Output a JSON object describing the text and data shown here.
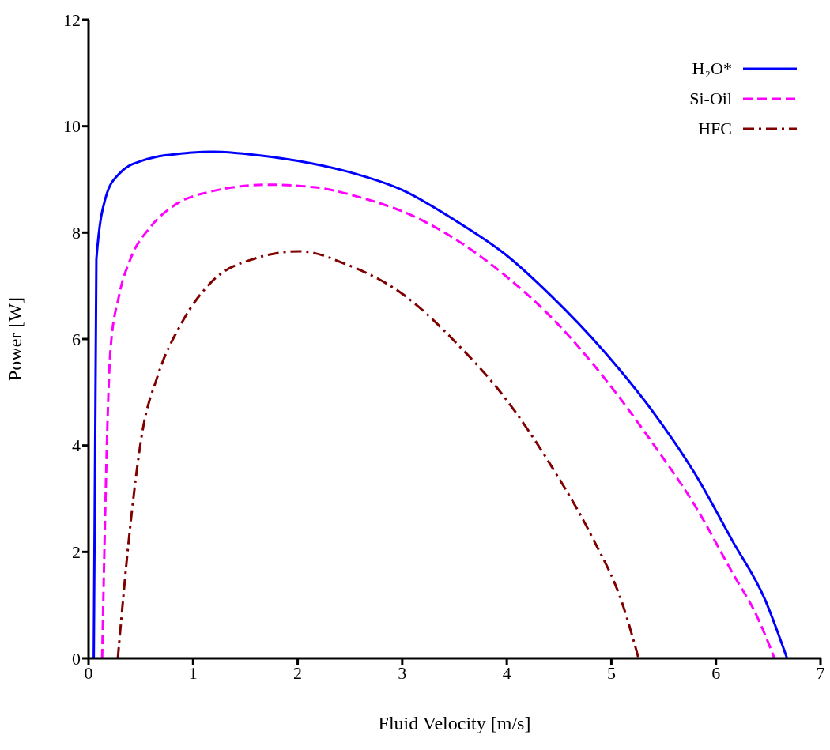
{
  "chart_data": {
    "type": "line",
    "xlabel": "Fluid Velocity [m/s]",
    "ylabel": "Power [W]",
    "xlim": [
      0,
      7
    ],
    "xticks": [
      0,
      1,
      2,
      3,
      4,
      5,
      6,
      7
    ],
    "ylim": [
      0,
      12
    ],
    "yticks": [
      0,
      2,
      4,
      6,
      8,
      10,
      12
    ],
    "grid": false,
    "legend": "top right",
    "marker": "none",
    "series": [
      {
        "name": "H₂O*",
        "color": "#0000ff",
        "line_style": "solid",
        "x": [
          0.05,
          0.075,
          0.17,
          0.29,
          0.51,
          0.96,
          1.19,
          1.64,
          2.0,
          2.47,
          3.0,
          3.53,
          3.98,
          4.43,
          4.96,
          5.41,
          5.79,
          6.16,
          6.47,
          6.68
        ],
        "values": [
          0,
          7.5,
          8.7,
          9.1,
          9.35,
          9.5,
          9.52,
          9.45,
          9.35,
          9.15,
          8.8,
          8.2,
          7.6,
          6.8,
          5.7,
          4.6,
          3.5,
          2.2,
          1.1,
          0
        ]
      },
      {
        "name": "Si-Oil",
        "color": "#ff00ff",
        "line_style": "dashed",
        "x": [
          0.13,
          0.21,
          0.29,
          0.4,
          0.59,
          0.81,
          1.12,
          1.72,
          2.17,
          2.62,
          3.0,
          3.53,
          3.98,
          4.43,
          4.96,
          5.41,
          5.79,
          6.16,
          6.39,
          6.56
        ],
        "values": [
          0,
          5.8,
          6.8,
          7.5,
          8.1,
          8.5,
          8.75,
          8.9,
          8.85,
          8.65,
          8.4,
          7.85,
          7.2,
          6.4,
          5.2,
          4.0,
          2.9,
          1.6,
          0.8,
          0
        ]
      },
      {
        "name": "HFC",
        "color": "#800000",
        "line_style": "dashdot",
        "x": [
          0.28,
          0.4,
          0.51,
          0.66,
          0.89,
          1.19,
          1.57,
          2.02,
          2.47,
          3.0,
          3.53,
          3.98,
          4.43,
          4.81,
          5.11,
          5.26
        ],
        "values": [
          0,
          2.5,
          4.2,
          5.3,
          6.3,
          7.1,
          7.5,
          7.65,
          7.4,
          6.85,
          5.9,
          4.9,
          3.6,
          2.3,
          1.0,
          0
        ]
      }
    ]
  }
}
